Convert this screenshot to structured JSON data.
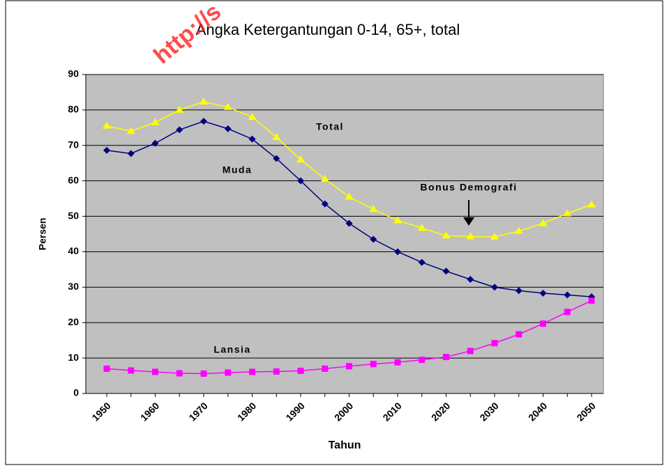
{
  "chart_data": {
    "type": "line",
    "title": "Angka Ketergantungan 0-14, 65+, total",
    "watermark": "http://s",
    "ylabel": "Persen",
    "xlabel": "Tahun",
    "annotations": [
      "Total",
      "Muda",
      "Bonus Demografi",
      "Lansia"
    ],
    "categories": [
      "1950",
      null,
      "1960",
      null,
      "1970",
      null,
      "1980",
      null,
      "1990",
      null,
      "2000",
      null,
      "2010",
      null,
      "2020",
      null,
      "2030",
      null,
      "2040",
      null,
      "2050"
    ],
    "series": [
      {
        "name": "Total",
        "color": "#ffff00",
        "marker": "triangle",
        "values": [
          75.5,
          74,
          76.5,
          80,
          82.3,
          80.8,
          78,
          72.3,
          66,
          60.5,
          55.5,
          52,
          48.8,
          46.7,
          44.5,
          44.3,
          44.2,
          45.8,
          48,
          50.8,
          53.3
        ]
      },
      {
        "name": "Muda",
        "color": "#000080",
        "marker": "diamond",
        "values": [
          68.6,
          67.7,
          70.6,
          74.4,
          76.8,
          74.7,
          71.8,
          66.3,
          60,
          53.5,
          48,
          43.5,
          40,
          37,
          34.5,
          32.2,
          30,
          29,
          28.3,
          27.8,
          27.3
        ]
      },
      {
        "name": "Lansia",
        "color": "#ff00ff",
        "marker": "square",
        "values": [
          7,
          6.5,
          6.1,
          5.7,
          5.6,
          5.9,
          6.1,
          6.2,
          6.4,
          7,
          7.7,
          8.3,
          8.8,
          9.5,
          10.3,
          12,
          14.2,
          16.7,
          19.7,
          23,
          26.2
        ]
      }
    ],
    "ylim": [
      0,
      90
    ],
    "yticks": [
      0,
      10,
      20,
      30,
      40,
      50,
      60,
      70,
      80,
      90
    ],
    "grid": true
  }
}
